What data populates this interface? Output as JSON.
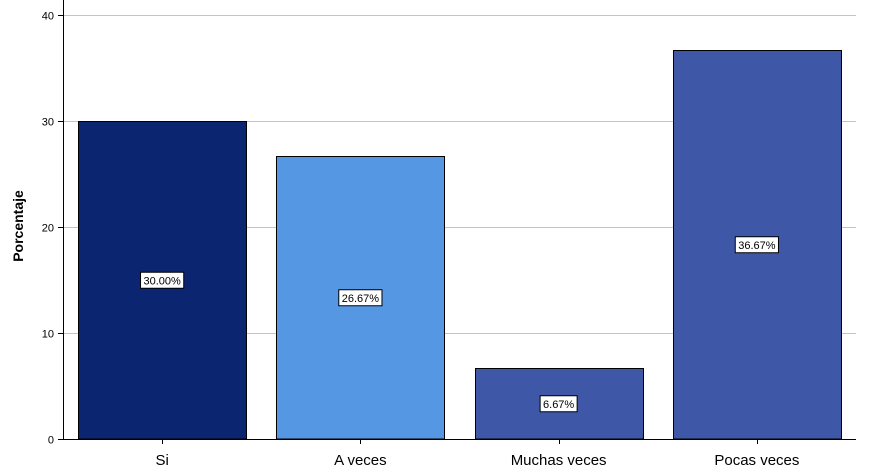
{
  "chart_data": {
    "type": "bar",
    "title": "",
    "xlabel": "",
    "ylabel": "Porcentaje",
    "categories": [
      "Si",
      "A veces",
      "Muchas veces",
      "Pocas veces"
    ],
    "values": [
      30.0,
      26.67,
      6.67,
      36.67
    ],
    "data_labels": [
      "30.00%",
      "26.67%",
      "6.67%",
      "36.67%"
    ],
    "bar_colors": [
      "#0c2570",
      "#5597e3",
      "#3e58a7",
      "#3e58a7"
    ],
    "ylim": [
      0,
      40
    ],
    "yticks": [
      0,
      10,
      20,
      30,
      40
    ],
    "ytick_labels": [
      "0",
      "10",
      "20",
      "30",
      "40"
    ],
    "grid": true,
    "gridline_color": "#c4c4c4",
    "bar_outline_color": "#000000",
    "legend": "none"
  }
}
